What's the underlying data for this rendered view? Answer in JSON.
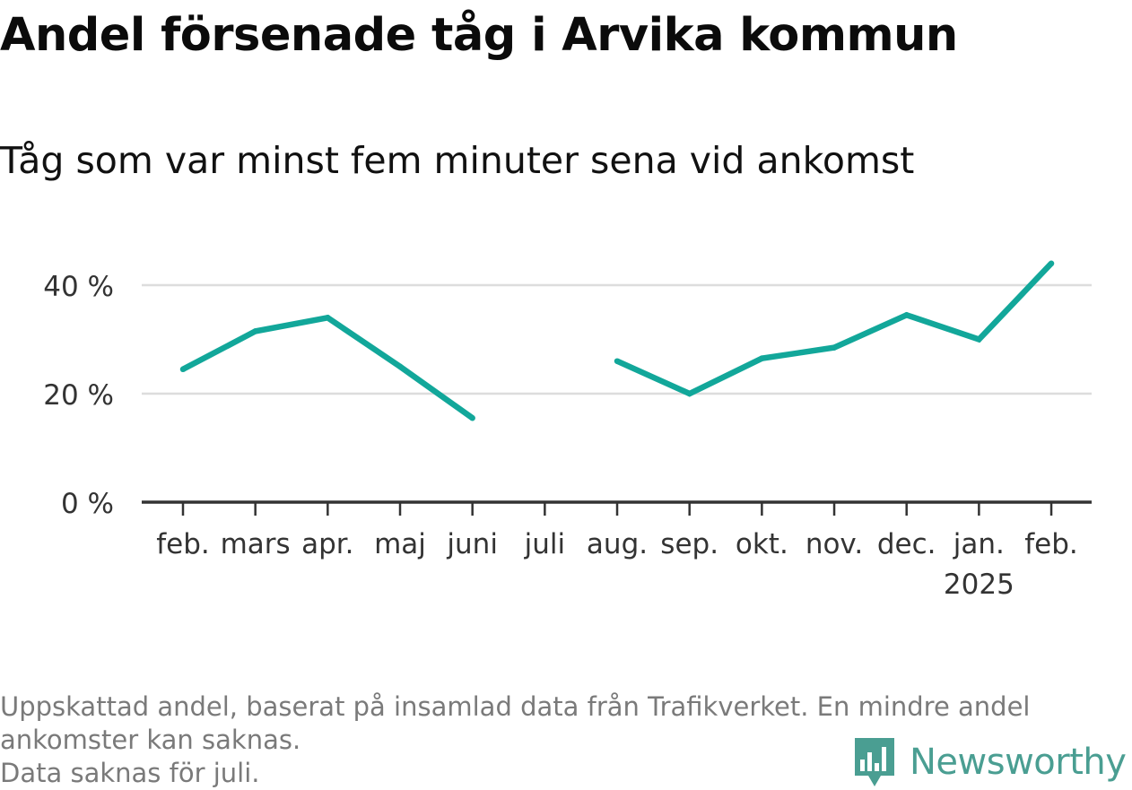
{
  "title": "Andel försenade tåg i Arvika kommun",
  "subtitle": "Tåg som var minst fem minuter sena vid ankomst",
  "footnote": {
    "line1": "Uppskattad andel, baserat på insamlad data från Trafikverket. En mindre andel",
    "line2": "ankomster kan saknas.",
    "line3": "Data saknas för juli."
  },
  "brand": {
    "name": "Newsworthy",
    "color": "#4a9e92",
    "icon": "bar-chart-speech-bubble-icon"
  },
  "chart_data": {
    "type": "line",
    "categories": [
      "feb.",
      "mars",
      "apr.",
      "maj",
      "juni",
      "juli",
      "aug.",
      "sep.",
      "okt.",
      "nov.",
      "dec.",
      "jan.",
      "feb."
    ],
    "category_sublabels": [
      "",
      "",
      "",
      "",
      "",
      "",
      "",
      "",
      "",
      "",
      "",
      "2025",
      ""
    ],
    "values": [
      24.5,
      31.5,
      34,
      25,
      15.5,
      null,
      26,
      20,
      26.5,
      28.5,
      34.5,
      30,
      44
    ],
    "y_tick_values": [
      0,
      20,
      40
    ],
    "y_tick_labels": [
      "0 %",
      "20 %",
      "40 %"
    ],
    "ylim": [
      0,
      44
    ],
    "grid": true,
    "line_color": "#12a79a",
    "grid_color": "#dddddd",
    "axis_color": "#333333"
  }
}
